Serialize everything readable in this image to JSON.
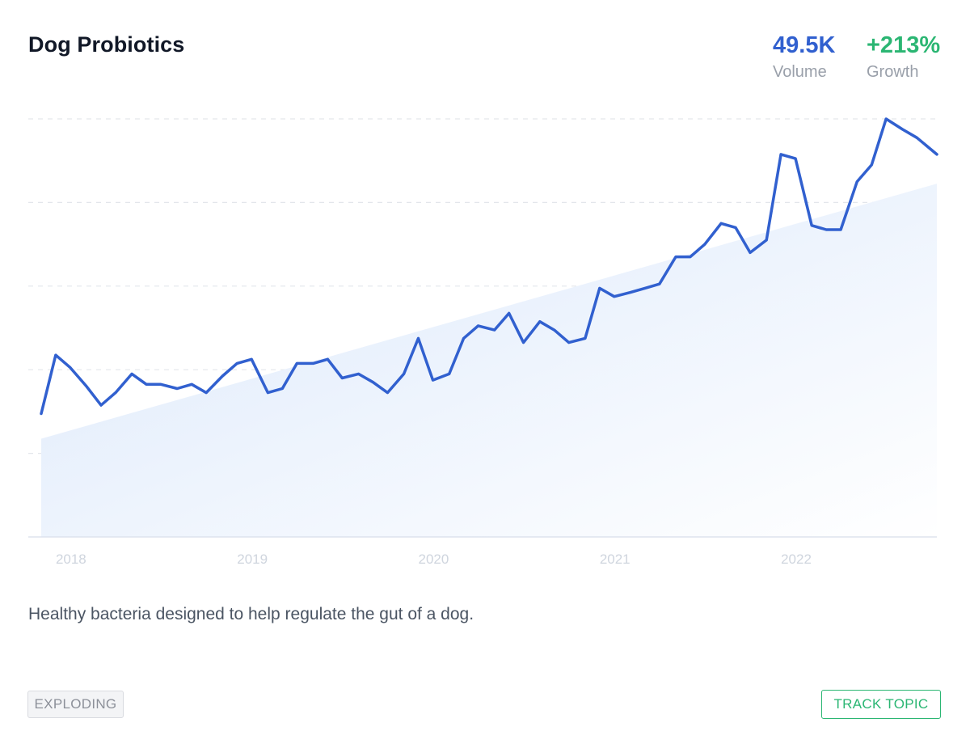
{
  "topic": {
    "title": "Dog Probiotics",
    "description": "Healthy bacteria designed to help regulate the gut of a dog."
  },
  "stats": {
    "volume_value": "49.5K",
    "volume_label": "Volume",
    "growth_value": "+213%",
    "growth_label": "Growth"
  },
  "badge": {
    "label": "EXPLODING"
  },
  "actions": {
    "track_label": "TRACK TOPIC"
  },
  "colors": {
    "line": "#3160cf",
    "volume": "#3160cf",
    "growth": "#2bb673",
    "trend_fill": "#dbe8fb"
  },
  "chart_data": {
    "type": "line",
    "title": "",
    "xlabel": "",
    "ylabel": "",
    "x_tick_labels": [
      "2018",
      "2019",
      "2020",
      "2021",
      "2022"
    ],
    "x_tick_positions": [
      2018.0,
      2019.0,
      2020.0,
      2021.0,
      2022.0
    ],
    "x_range": [
      2017.92,
      2022.86
    ],
    "y_range": [
      0,
      100
    ],
    "grid": "horizontal-dashed",
    "y_gridlines": [
      20,
      40,
      60,
      80,
      100
    ],
    "series": [
      {
        "values": [
          [
            2017.92,
            29.5
          ],
          [
            2018.0,
            43.5
          ],
          [
            2018.08,
            40.5
          ],
          [
            2018.17,
            36.0
          ],
          [
            2018.25,
            31.5
          ],
          [
            2018.33,
            34.5
          ],
          [
            2018.42,
            39.0
          ],
          [
            2018.5,
            36.5
          ],
          [
            2018.58,
            36.5
          ],
          [
            2018.67,
            35.5
          ],
          [
            2018.75,
            36.5
          ],
          [
            2018.83,
            34.5
          ],
          [
            2018.92,
            38.5
          ],
          [
            2019.0,
            41.5
          ],
          [
            2019.08,
            42.5
          ],
          [
            2019.17,
            34.5
          ],
          [
            2019.25,
            35.5
          ],
          [
            2019.33,
            41.5
          ],
          [
            2019.42,
            41.5
          ],
          [
            2019.5,
            42.5
          ],
          [
            2019.58,
            38.0
          ],
          [
            2019.67,
            39.0
          ],
          [
            2019.75,
            37.0
          ],
          [
            2019.83,
            34.5
          ],
          [
            2019.92,
            39.0
          ],
          [
            2020.0,
            47.5
          ],
          [
            2020.08,
            37.5
          ],
          [
            2020.17,
            39.0
          ],
          [
            2020.25,
            47.5
          ],
          [
            2020.33,
            50.5
          ],
          [
            2020.42,
            49.5
          ],
          [
            2020.5,
            53.5
          ],
          [
            2020.58,
            46.5
          ],
          [
            2020.67,
            51.5
          ],
          [
            2020.75,
            49.5
          ],
          [
            2020.83,
            46.5
          ],
          [
            2020.92,
            47.5
          ],
          [
            2021.0,
            59.5
          ],
          [
            2021.08,
            57.5
          ],
          [
            2021.17,
            58.5
          ],
          [
            2021.25,
            59.5
          ],
          [
            2021.33,
            60.5
          ],
          [
            2021.42,
            67.0
          ],
          [
            2021.5,
            67.0
          ],
          [
            2021.58,
            70.0
          ],
          [
            2021.67,
            75.0
          ],
          [
            2021.75,
            74.0
          ],
          [
            2021.83,
            68.0
          ],
          [
            2021.92,
            71.0
          ],
          [
            2022.0,
            91.5
          ],
          [
            2022.08,
            90.5
          ],
          [
            2022.17,
            74.5
          ],
          [
            2022.25,
            73.5
          ],
          [
            2022.33,
            73.5
          ],
          [
            2022.42,
            85.0
          ],
          [
            2022.5,
            89.0
          ],
          [
            2022.58,
            100.0
          ],
          [
            2022.67,
            97.5
          ],
          [
            2022.75,
            95.5
          ],
          [
            2022.86,
            91.5
          ]
        ]
      }
    ],
    "trend_area": {
      "start": [
        2017.92,
        23.5
      ],
      "end": [
        2022.86,
        84.5
      ]
    }
  }
}
